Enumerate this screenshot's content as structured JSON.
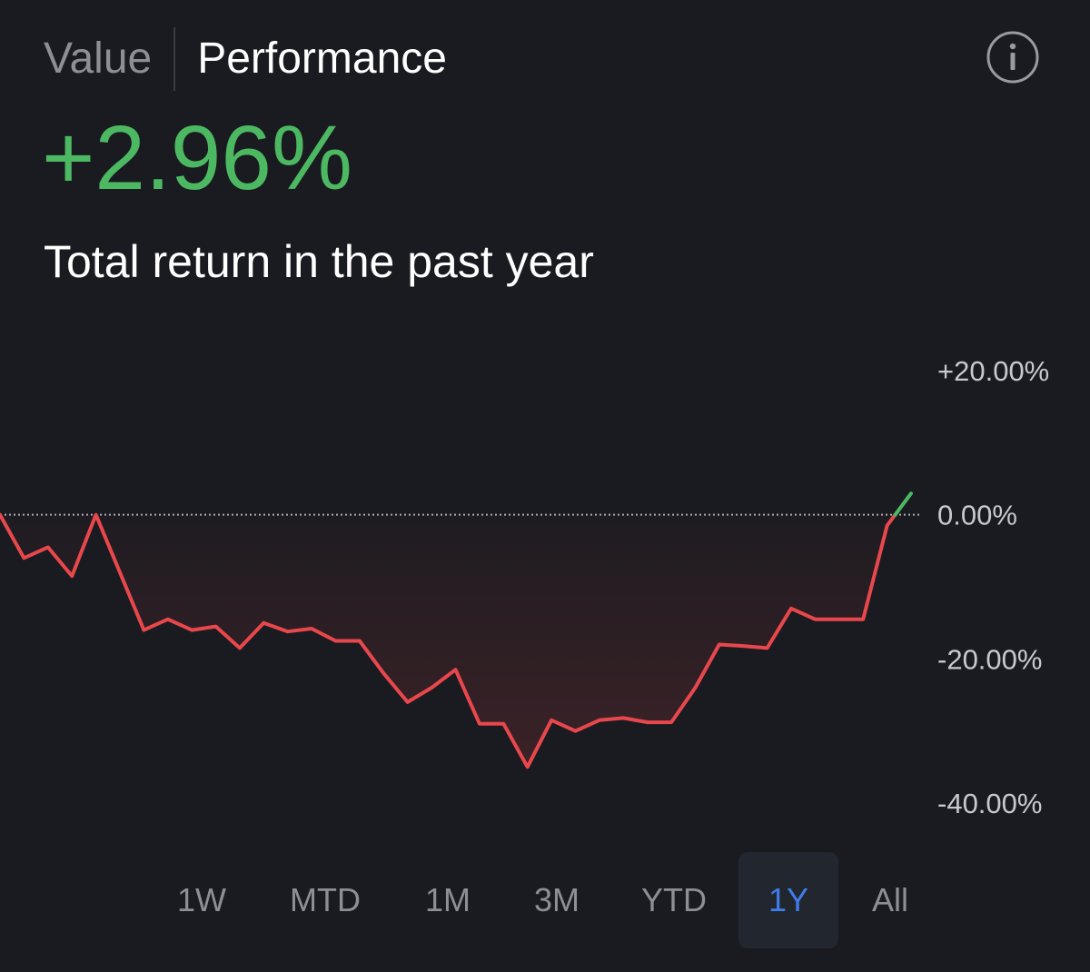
{
  "tabs": [
    {
      "label": "Value",
      "active": false
    },
    {
      "label": "Performance",
      "active": true
    }
  ],
  "info_icon": "info-circle-icon",
  "summary": {
    "return_value": "+2.96%",
    "subtitle": "Total return in the past year"
  },
  "colors": {
    "positive": "#4cb962",
    "negative": "#e8474c",
    "selected_range": "#3f7dea",
    "muted_text": "#8e8f94"
  },
  "chart_data": {
    "type": "line",
    "title": "",
    "xlabel": "",
    "ylabel": "",
    "ylim": [
      -40,
      20
    ],
    "y_ticks": [
      20,
      0,
      -20,
      -40
    ],
    "y_tick_labels": [
      "+20.00%",
      "0.00%",
      "-20.00%",
      "-40.00%"
    ],
    "baseline": 0,
    "baseline_style": "dotted",
    "grid": false,
    "legend": "none",
    "series": [
      {
        "values": [
          0,
          -6,
          -4.5,
          -8.5,
          0,
          -8,
          -16,
          -14.5,
          -16,
          -15.5,
          -18.5,
          -15,
          -16.2,
          -15.8,
          -17.5,
          -17.5,
          -22,
          -26,
          -24,
          -21.5,
          -29,
          -29,
          -35,
          -28.5,
          -30,
          -28.5,
          -28.2,
          -28.8,
          -28.8,
          -24,
          -18,
          -18.2,
          -18.5,
          -13,
          -14.5,
          -14.5,
          -14.5,
          -1.5,
          2.96
        ]
      }
    ]
  },
  "ranges": [
    {
      "label": "1W",
      "selected": false
    },
    {
      "label": "MTD",
      "selected": false
    },
    {
      "label": "1M",
      "selected": false
    },
    {
      "label": "3M",
      "selected": false
    },
    {
      "label": "YTD",
      "selected": false
    },
    {
      "label": "1Y",
      "selected": true
    },
    {
      "label": "All",
      "selected": false
    }
  ]
}
